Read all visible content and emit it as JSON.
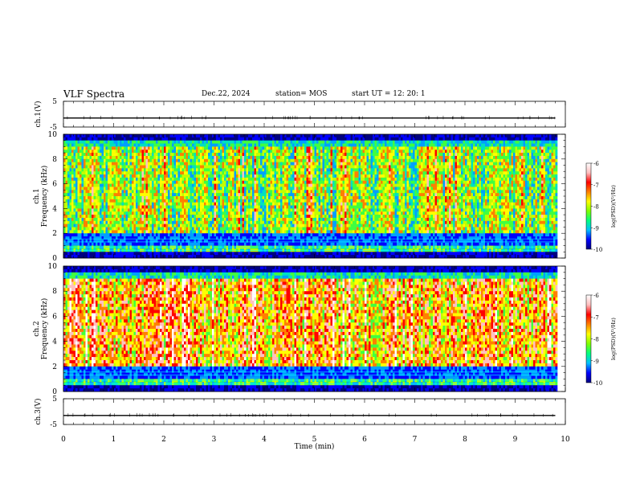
{
  "header": {
    "title": "VLF Spectra",
    "date": "Dec.22, 2024",
    "station": "station= MOS",
    "start_ut": "start  UT =   12: 20: 1"
  },
  "chart_data": [
    {
      "type": "line",
      "name": "ch1-waveform",
      "ylabel": "ch.1(V)",
      "ylim": [
        -5,
        5
      ],
      "y_ticks": [
        "5",
        "-5"
      ],
      "x": [
        0,
        9.8
      ],
      "values": [
        -1.5,
        -1.5
      ]
    },
    {
      "type": "heatmap",
      "name": "ch1-spectrogram",
      "ylabel_top": "ch.1",
      "ylabel": "Frequency (kHz)",
      "ylim": [
        0,
        10
      ],
      "xlim": [
        0,
        9.8
      ],
      "y_ticks": [
        "0",
        "2",
        "4",
        "6",
        "8",
        "10"
      ],
      "colorbar": {
        "label": "log(PSD)(V²/Hz)",
        "ticks": [
          "-6",
          "-7",
          "-8",
          "-9",
          "-10"
        ],
        "range": [
          -10,
          -6
        ]
      },
      "colors": [
        "#000080",
        "#0000ff",
        "#00a0ff",
        "#00e0c0",
        "#40ff40",
        "#c0ff00",
        "#ffff00",
        "#ff8000",
        "#ff0000",
        "#ffc0c0",
        "#ffffff"
      ]
    },
    {
      "type": "heatmap",
      "name": "ch2-spectrogram",
      "ylabel_top": "ch.2",
      "ylabel": "Frequency (kHz)",
      "ylim": [
        0,
        10
      ],
      "xlim": [
        0,
        9.8
      ],
      "y_ticks": [
        "0",
        "2",
        "4",
        "6",
        "8",
        "10"
      ],
      "colorbar": {
        "label": "log(PSD)(V²/Hz)",
        "ticks": [
          "-6",
          "-7",
          "-8",
          "-9",
          "-10"
        ],
        "range": [
          -10,
          -6
        ]
      }
    },
    {
      "type": "line",
      "name": "ch3-waveform",
      "ylabel": "ch.3(V)",
      "ylim": [
        -5,
        5
      ],
      "y_ticks": [
        "5",
        "-5"
      ],
      "x": [
        0,
        9.8
      ],
      "values": [
        -1.5,
        -1.5
      ]
    }
  ],
  "x_axis": {
    "label": "Time (min)",
    "ticks": [
      "0",
      "1",
      "2",
      "3",
      "4",
      "5",
      "6",
      "7",
      "8",
      "9",
      "10"
    ],
    "xlim": [
      0,
      10
    ]
  }
}
